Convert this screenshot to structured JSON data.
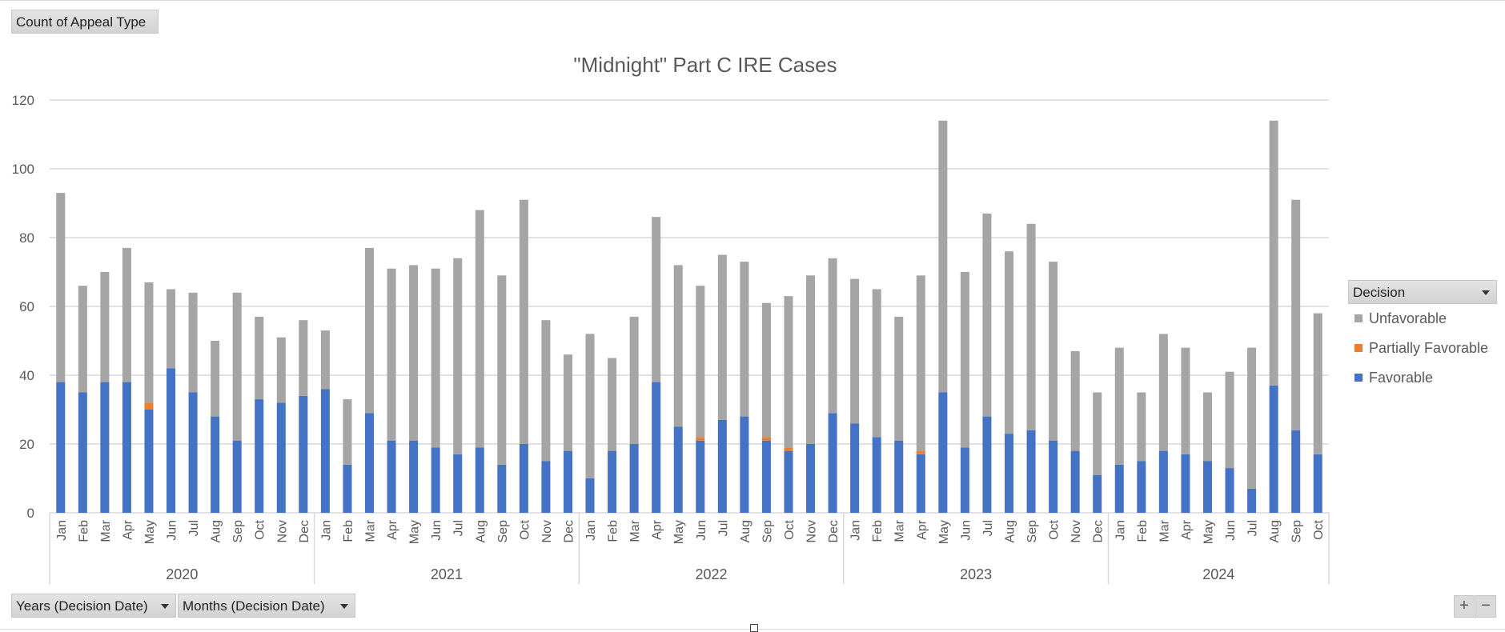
{
  "controls": {
    "value_field": "Count of Appeal Type",
    "axis_fields": [
      "Years (Decision Date)",
      "Months (Decision Date)"
    ],
    "legend_field": "Decision",
    "zoom_in": "+",
    "zoom_out": "−"
  },
  "colors": {
    "Favorable": "#4472c4",
    "Partially Favorable": "#ed7d31",
    "Unfavorable": "#a5a5a5",
    "gridline": "#d9d9d9",
    "text": "#595959"
  },
  "chart_data": {
    "type": "bar",
    "stacked": true,
    "title": "\"Midnight\" Part C IRE Cases",
    "xlabel": "",
    "ylabel": "",
    "ylim": [
      0,
      120
    ],
    "yticks": [
      0,
      20,
      40,
      60,
      80,
      100,
      120
    ],
    "grid": true,
    "legend_position": "right",
    "groups": [
      {
        "label": "2020",
        "months": [
          "Jan",
          "Feb",
          "Mar",
          "Apr",
          "May",
          "Jun",
          "Jul",
          "Aug",
          "Sep",
          "Oct",
          "Nov",
          "Dec"
        ]
      },
      {
        "label": "2021",
        "months": [
          "Jan",
          "Feb",
          "Mar",
          "Apr",
          "May",
          "Jun",
          "Jul",
          "Aug",
          "Sep",
          "Oct",
          "Nov",
          "Dec"
        ]
      },
      {
        "label": "2022",
        "months": [
          "Jan",
          "Feb",
          "Mar",
          "Apr",
          "May",
          "Jun",
          "Jul",
          "Aug",
          "Sep",
          "Oct",
          "Nov",
          "Dec"
        ]
      },
      {
        "label": "2023",
        "months": [
          "Jan",
          "Feb",
          "Mar",
          "Apr",
          "May",
          "Jun",
          "Jul",
          "Aug",
          "Sep",
          "Oct",
          "Nov",
          "Dec"
        ]
      },
      {
        "label": "2024",
        "months": [
          "Jan",
          "Feb",
          "Mar",
          "Apr",
          "May",
          "Jun",
          "Jul",
          "Aug",
          "Sep",
          "Oct"
        ]
      }
    ],
    "series": [
      {
        "name": "Favorable",
        "values": [
          38,
          35,
          38,
          38,
          30,
          42,
          35,
          28,
          21,
          33,
          32,
          34,
          36,
          14,
          29,
          21,
          21,
          19,
          17,
          19,
          14,
          20,
          15,
          18,
          10,
          18,
          20,
          38,
          25,
          21,
          27,
          28,
          21,
          18,
          20,
          29,
          26,
          22,
          21,
          17,
          35,
          19,
          28,
          23,
          24,
          21,
          18,
          11,
          14,
          15,
          18,
          17,
          15,
          13,
          7,
          37,
          24,
          17
        ]
      },
      {
        "name": "Partially Favorable",
        "values": [
          0,
          0,
          0,
          0,
          2,
          0,
          0,
          0,
          0,
          0,
          0,
          0,
          0,
          0,
          0,
          0,
          0,
          0,
          0,
          0,
          0,
          0,
          0,
          0,
          0,
          0,
          0,
          0,
          0,
          1,
          0,
          0,
          1,
          1,
          0,
          0,
          0,
          0,
          0,
          1,
          0,
          0,
          0,
          0,
          0,
          0,
          0,
          0,
          0,
          0,
          0,
          0,
          0,
          0,
          0,
          0,
          0,
          0
        ]
      },
      {
        "name": "Unfavorable",
        "values": [
          55,
          31,
          32,
          39,
          35,
          23,
          29,
          22,
          43,
          24,
          19,
          22,
          17,
          19,
          48,
          50,
          51,
          52,
          57,
          69,
          55,
          71,
          41,
          28,
          42,
          27,
          37,
          48,
          47,
          44,
          48,
          45,
          39,
          44,
          49,
          45,
          42,
          43,
          36,
          51,
          79,
          51,
          59,
          53,
          60,
          52,
          29,
          24,
          34,
          20,
          34,
          31,
          20,
          28,
          41,
          77,
          67,
          41
        ]
      }
    ],
    "legend_order": [
      "Unfavorable",
      "Partially Favorable",
      "Favorable"
    ]
  }
}
